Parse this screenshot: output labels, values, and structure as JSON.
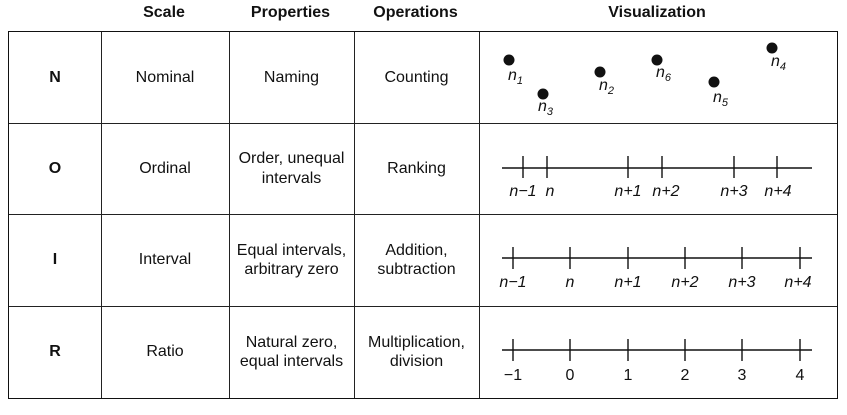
{
  "headers": {
    "scale": "Scale",
    "properties": "Properties",
    "operations": "Operations",
    "visualization": "Visualization"
  },
  "rows": [
    {
      "code": "N",
      "scale": "Nominal",
      "properties": "Naming",
      "operations": "Counting"
    },
    {
      "code": "O",
      "scale": "Ordinal",
      "properties": "Order, unequal\nintervals",
      "operations": "Ranking"
    },
    {
      "code": "I",
      "scale": "Interval",
      "properties": "Equal intervals,\narbitrary zero",
      "operations": "Addition,\nsubtraction"
    },
    {
      "code": "R",
      "scale": "Ratio",
      "properties": "Natural zero,\nequal intervals",
      "operations": "Multiplication,\ndivision"
    }
  ],
  "nominal_points": [
    {
      "base": "n",
      "sub": "1"
    },
    {
      "base": "n",
      "sub": "3"
    },
    {
      "base": "n",
      "sub": "2"
    },
    {
      "base": "n",
      "sub": "6"
    },
    {
      "base": "n",
      "sub": "5"
    },
    {
      "base": "n",
      "sub": "4"
    }
  ],
  "ordinal_ticks": [
    "n−1",
    "n",
    "n+1",
    "n+2",
    "n+3",
    "n+4"
  ],
  "interval_ticks": [
    "n−1",
    "n",
    "n+1",
    "n+2",
    "n+3",
    "n+4"
  ],
  "ratio_ticks": [
    "−1",
    "0",
    "1",
    "2",
    "3",
    "4"
  ]
}
